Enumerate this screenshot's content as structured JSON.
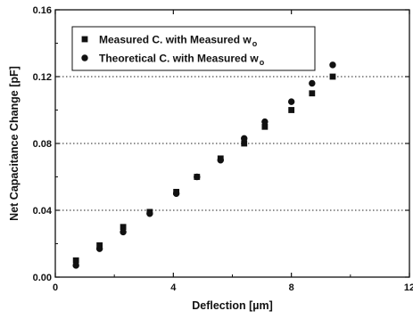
{
  "chart_data": {
    "type": "scatter",
    "title": "",
    "xlabel": "Deflection [µm]",
    "ylabel": "Net Capacitance Change [pF]",
    "xlim": [
      0,
      12
    ],
    "ylim": [
      0,
      0.16
    ],
    "xticks": [
      0,
      4,
      8,
      12
    ],
    "yticks": [
      0.0,
      0.04,
      0.08,
      0.12,
      0.16
    ],
    "xtick_labels": [
      "0",
      "4",
      "8",
      "12"
    ],
    "ytick_labels": [
      "0.00",
      "0.04",
      "0.08",
      "0.12",
      "0.16"
    ],
    "grid": "horizontal dotted at y ticks",
    "legend_position": "top-left",
    "series": [
      {
        "name": "Measured C. with Measured w",
        "name_subscript": "o",
        "marker": "square",
        "color": "#111111",
        "x": [
          0.7,
          1.5,
          2.3,
          3.2,
          4.1,
          4.8,
          5.6,
          6.4,
          7.1,
          8.0,
          8.7,
          9.4
        ],
        "y": [
          0.01,
          0.019,
          0.03,
          0.039,
          0.051,
          0.06,
          0.071,
          0.08,
          0.09,
          0.1,
          0.11,
          0.12
        ]
      },
      {
        "name": "Theoretical C. with Measured w",
        "name_subscript": "o",
        "marker": "circle",
        "color": "#111111",
        "x": [
          0.7,
          1.5,
          2.3,
          3.2,
          4.1,
          4.8,
          5.6,
          6.4,
          7.1,
          8.0,
          8.7,
          9.4
        ],
        "y": [
          0.007,
          0.017,
          0.027,
          0.038,
          0.05,
          0.06,
          0.07,
          0.083,
          0.093,
          0.105,
          0.116,
          0.127
        ]
      }
    ]
  }
}
